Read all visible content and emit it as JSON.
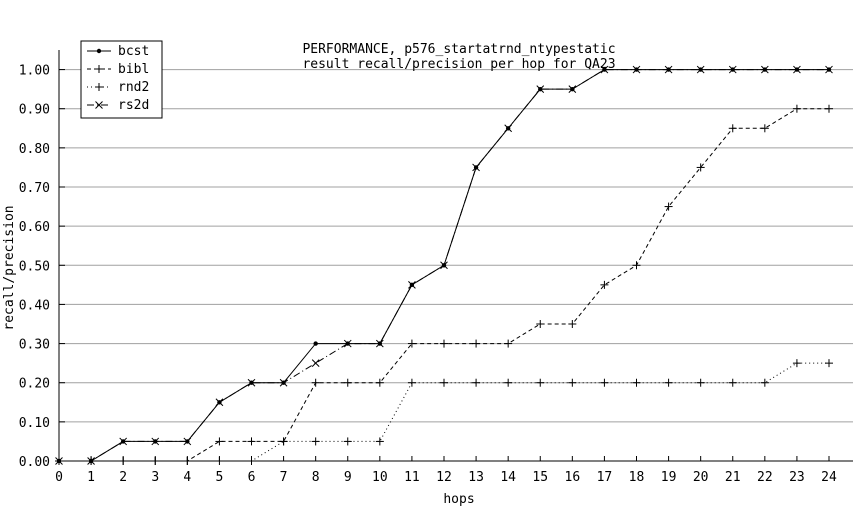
{
  "chart_data": {
    "type": "line",
    "title": [
      "PERFORMANCE, p576_startatrnd_ntypestatic",
      "result recall/precision per hop for QA23"
    ],
    "xlabel": "hops",
    "ylabel": "recall/precision",
    "x": [
      0,
      1,
      2,
      3,
      4,
      5,
      6,
      7,
      8,
      9,
      10,
      11,
      12,
      13,
      14,
      15,
      16,
      17,
      18,
      19,
      20,
      21,
      22,
      23,
      24
    ],
    "xlim": [
      0,
      24
    ],
    "ylim": [
      0,
      1.05
    ],
    "x_ticks": [
      "0",
      "1",
      "2",
      "3",
      "4",
      "5",
      "6",
      "7",
      "8",
      "9",
      "10",
      "11",
      "12",
      "13",
      "14",
      "15",
      "16",
      "17",
      "18",
      "19",
      "20",
      "21",
      "22",
      "23",
      "24"
    ],
    "y_ticks": [
      "0.00",
      "0.10",
      "0.20",
      "0.30",
      "0.40",
      "0.50",
      "0.60",
      "0.70",
      "0.80",
      "0.90",
      "1.00"
    ],
    "grid": true,
    "legend_position": "top-left",
    "series": [
      {
        "name": "bcst",
        "style": "solid",
        "marker": "dot",
        "values": [
          0,
          0,
          0.05,
          0.05,
          0.05,
          0.15,
          0.2,
          0.2,
          0.3,
          0.3,
          0.3,
          0.45,
          0.5,
          0.75,
          0.85,
          0.95,
          0.95,
          1,
          1,
          1,
          1,
          1,
          1,
          1,
          1
        ]
      },
      {
        "name": "bibl",
        "style": "dashed",
        "marker": "plus",
        "values": [
          0,
          0,
          0,
          0,
          0,
          0.05,
          0.05,
          0.05,
          0.2,
          0.2,
          0.2,
          0.3,
          0.3,
          0.3,
          0.3,
          0.35,
          0.35,
          0.45,
          0.5,
          0.65,
          0.75,
          0.85,
          0.85,
          0.9,
          0.9
        ]
      },
      {
        "name": "rnd2",
        "style": "dotted",
        "marker": "plus",
        "values": [
          0,
          0,
          0,
          0,
          0,
          0,
          0,
          0.05,
          0.05,
          0.05,
          0.05,
          0.2,
          0.2,
          0.2,
          0.2,
          0.2,
          0.2,
          0.2,
          0.2,
          0.2,
          0.2,
          0.2,
          0.2,
          0.25,
          0.25
        ]
      },
      {
        "name": "rs2d",
        "style": "dash-dot",
        "marker": "x",
        "values": [
          0,
          0,
          0.05,
          0.05,
          0.05,
          0.15,
          0.2,
          0.2,
          0.25,
          0.3,
          0.3,
          0.45,
          0.5,
          0.75,
          0.85,
          0.95,
          0.95,
          1,
          1,
          1,
          1,
          1,
          1,
          1,
          1
        ]
      }
    ]
  }
}
